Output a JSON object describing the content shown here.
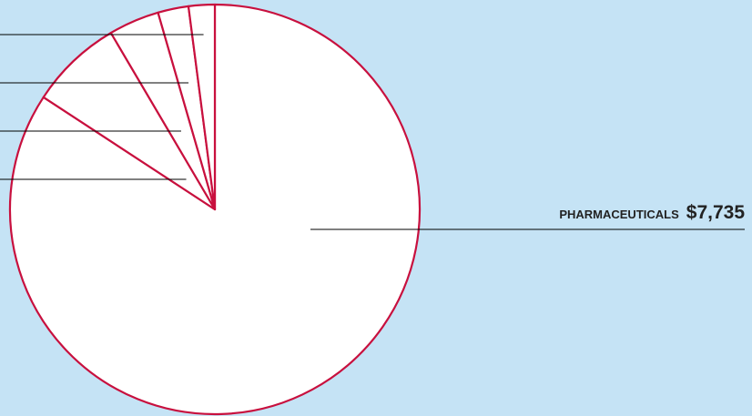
{
  "chart_data": {
    "type": "pie",
    "categories": [
      "PHARMACEUTICALS",
      null,
      null,
      null,
      null
    ],
    "values": [
      7735,
      671,
      367,
      222,
      189
    ],
    "value_labels": [
      "$7,735",
      null,
      null,
      null,
      null
    ],
    "color": "#ffffff",
    "edge_color": "#c8103e",
    "background": "#c5e3f5"
  }
}
